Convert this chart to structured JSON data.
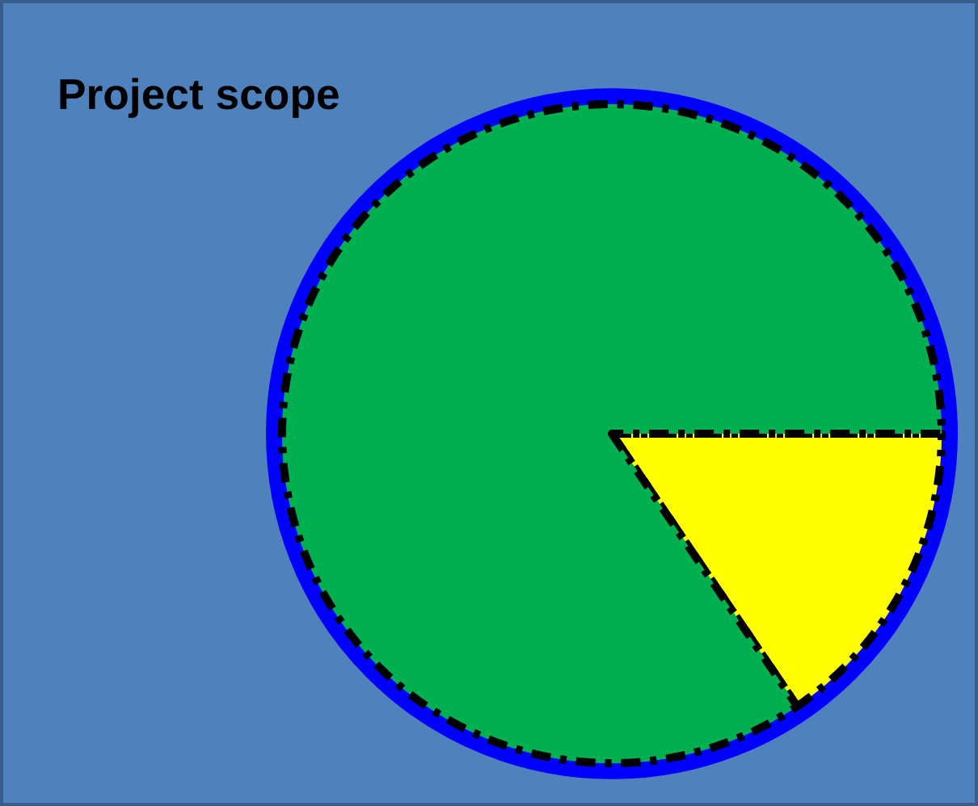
{
  "chart_data": {
    "type": "pie",
    "title": "Project scope",
    "categories": [
      null,
      null
    ],
    "values": [
      15.5,
      84.5
    ],
    "colors": [
      "#ffff00",
      "#00b050"
    ]
  }
}
